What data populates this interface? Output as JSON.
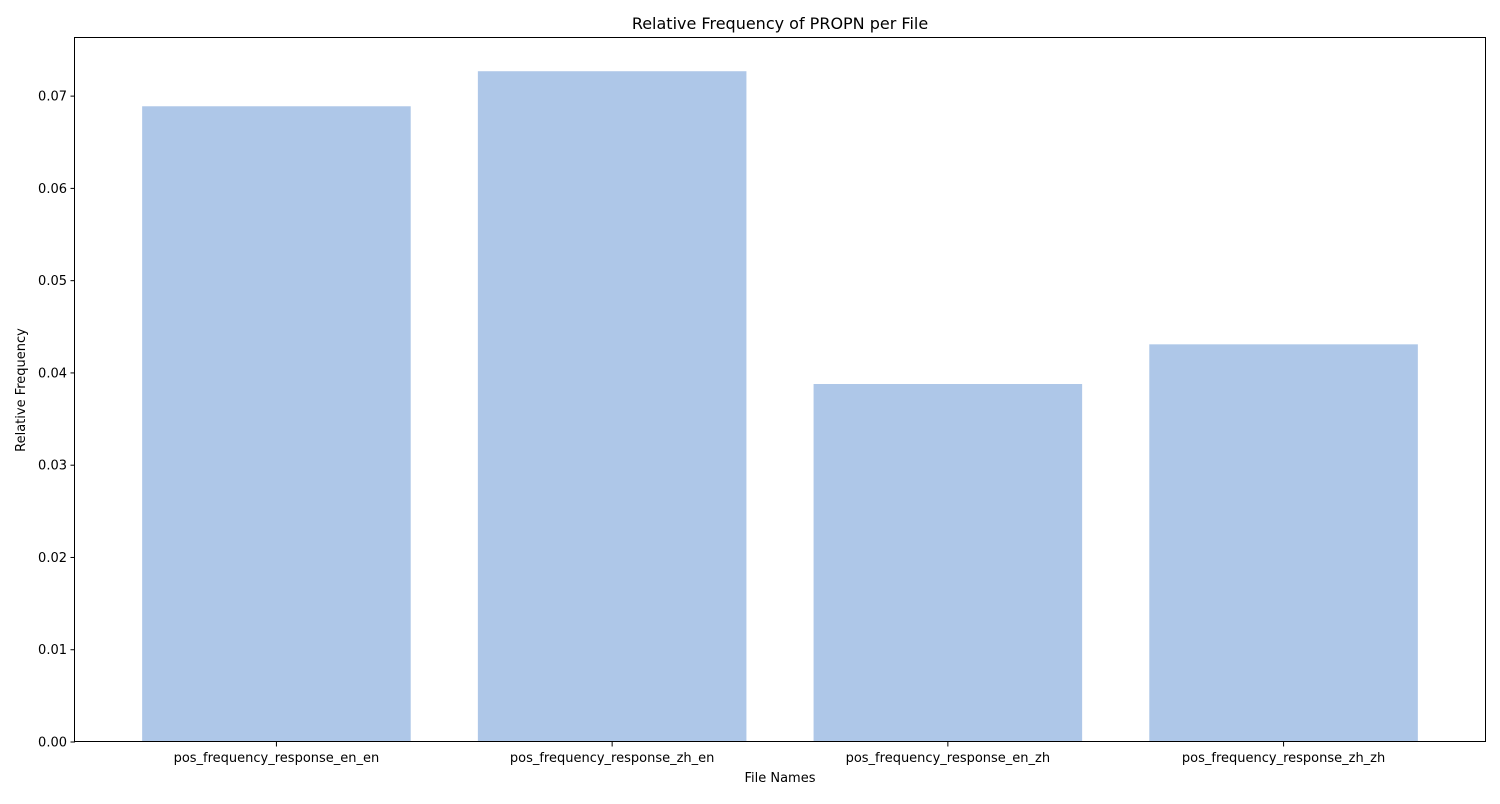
{
  "chart_data": {
    "type": "bar",
    "title": "Relative Frequency of PROPN per File",
    "xlabel": "File Names",
    "ylabel": "Relative Frequency",
    "categories": [
      "pos_frequency_response_en_en",
      "pos_frequency_response_zh_en",
      "pos_frequency_response_en_zh",
      "pos_frequency_response_zh_zh"
    ],
    "values": [
      0.0689,
      0.0727,
      0.0388,
      0.0431
    ],
    "ylim": [
      0,
      0.0763
    ],
    "yticks": [
      "0.00",
      "0.01",
      "0.02",
      "0.03",
      "0.04",
      "0.05",
      "0.06",
      "0.07"
    ],
    "grid": false,
    "legend": "none",
    "bar_color": "#aec7e8"
  }
}
